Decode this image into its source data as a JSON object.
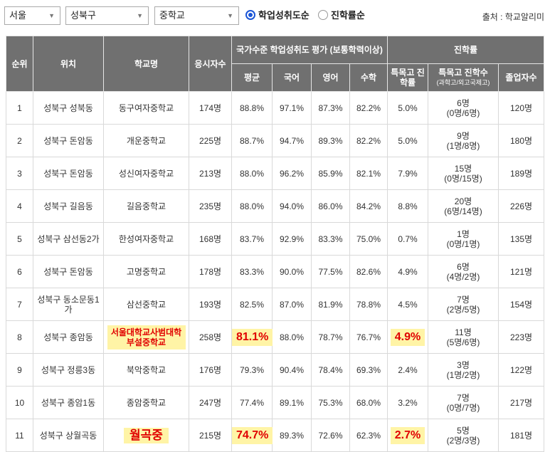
{
  "filters": {
    "region": "서울",
    "district": "성북구",
    "school_type": "중학교",
    "sort_options": [
      {
        "label": "학업성취도순",
        "selected": true
      },
      {
        "label": "진학률순",
        "selected": false
      }
    ]
  },
  "source": "출처 : 학교알리미",
  "headers": {
    "rank": "순위",
    "location": "위치",
    "school": "학교명",
    "takers": "응시자수",
    "achievement_group": "국가수준 학업성취도 평가 (보통학력이상)",
    "avg": "평균",
    "korean": "국어",
    "english": "영어",
    "math": "수학",
    "advancement_group": "진학률",
    "special_rate": "특목고 진학률",
    "special_count": "특목고 진학수",
    "special_count_sub": "(과학고/외고국제고)",
    "graduates": "졸업자수"
  },
  "rows": [
    {
      "rank": "1",
      "location": "성북구 성북동",
      "school": "동구여자중학교",
      "takers": "174명",
      "avg": "88.8%",
      "korean": "97.1%",
      "english": "87.3%",
      "math": "82.2%",
      "special_rate": "5.0%",
      "special_count": "6명",
      "special_detail": "(0명/6명)",
      "graduates": "120명"
    },
    {
      "rank": "2",
      "location": "성북구 돈암동",
      "school": "개운중학교",
      "takers": "225명",
      "avg": "88.7%",
      "korean": "94.7%",
      "english": "89.3%",
      "math": "82.2%",
      "special_rate": "5.0%",
      "special_count": "9명",
      "special_detail": "(1명/8명)",
      "graduates": "180명"
    },
    {
      "rank": "3",
      "location": "성북구 돈암동",
      "school": "성신여자중학교",
      "takers": "213명",
      "avg": "88.0%",
      "korean": "96.2%",
      "english": "85.9%",
      "math": "82.1%",
      "special_rate": "7.9%",
      "special_count": "15명",
      "special_detail": "(0명/15명)",
      "graduates": "189명"
    },
    {
      "rank": "4",
      "location": "성북구 길음동",
      "school": "길음중학교",
      "takers": "235명",
      "avg": "88.0%",
      "korean": "94.0%",
      "english": "86.0%",
      "math": "84.2%",
      "special_rate": "8.8%",
      "special_count": "20명",
      "special_detail": "(6명/14명)",
      "graduates": "226명"
    },
    {
      "rank": "5",
      "location": "성북구 삼선동2가",
      "school": "한성여자중학교",
      "takers": "168명",
      "avg": "83.7%",
      "korean": "92.9%",
      "english": "83.3%",
      "math": "75.0%",
      "special_rate": "0.7%",
      "special_count": "1명",
      "special_detail": "(0명/1명)",
      "graduates": "135명"
    },
    {
      "rank": "6",
      "location": "성북구 돈암동",
      "school": "고명중학교",
      "takers": "178명",
      "avg": "83.3%",
      "korean": "90.0%",
      "english": "77.5%",
      "math": "82.6%",
      "special_rate": "4.9%",
      "special_count": "6명",
      "special_detail": "(4명/2명)",
      "graduates": "121명"
    },
    {
      "rank": "7",
      "location": "성북구 동소문동1가",
      "school": "삼선중학교",
      "takers": "193명",
      "avg": "82.5%",
      "korean": "87.0%",
      "english": "81.9%",
      "math": "78.8%",
      "special_rate": "4.5%",
      "special_count": "7명",
      "special_detail": "(2명/5명)",
      "graduates": "154명"
    },
    {
      "rank": "8",
      "location": "성북구 종암동",
      "school": "서울대학교사범대학부설중학교",
      "takers": "258명",
      "avg": "81.1%",
      "korean": "88.0%",
      "english": "78.7%",
      "math": "76.7%",
      "special_rate": "4.9%",
      "special_count": "11명",
      "special_detail": "(5명/6명)",
      "graduates": "223명"
    },
    {
      "rank": "9",
      "location": "성북구 정릉3동",
      "school": "북악중학교",
      "takers": "176명",
      "avg": "79.3%",
      "korean": "90.4%",
      "english": "78.4%",
      "math": "69.3%",
      "special_rate": "2.4%",
      "special_count": "3명",
      "special_detail": "(1명/2명)",
      "graduates": "122명"
    },
    {
      "rank": "10",
      "location": "성북구 종암1동",
      "school": "종암중학교",
      "takers": "247명",
      "avg": "77.4%",
      "korean": "89.1%",
      "english": "75.3%",
      "math": "68.0%",
      "special_rate": "3.2%",
      "special_count": "7명",
      "special_detail": "(0명/7명)",
      "graduates": "217명"
    },
    {
      "rank": "11",
      "location": "성북구 상월곡동",
      "school": "월곡중",
      "takers": "215명",
      "avg": "74.7%",
      "korean": "89.3%",
      "english": "72.6%",
      "math": "62.3%",
      "special_rate": "2.7%",
      "special_count": "5명",
      "special_detail": "(2명/3명)",
      "graduates": "181명"
    }
  ],
  "highlights": {
    "highlight_bg": "#fff4a6",
    "highlight_text": "#e00000",
    "header_bg": "#707070",
    "radio_accent": "#1a55d6"
  }
}
